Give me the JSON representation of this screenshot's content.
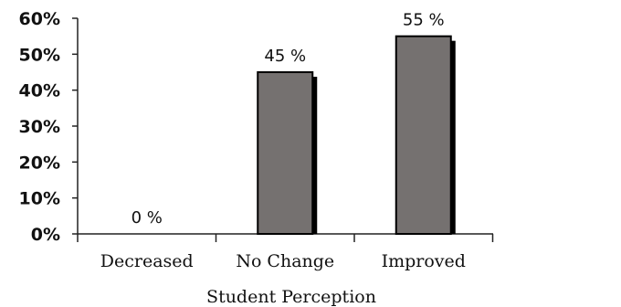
{
  "chart_data": {
    "type": "bar",
    "categories": [
      "Decreased",
      "No Change",
      "Improved"
    ],
    "values": [
      0,
      45,
      55
    ],
    "data_labels": [
      "0 %",
      "45 %",
      "55 %"
    ],
    "xlabel": "Student Perception",
    "ylabel": "",
    "ylim": [
      0,
      60
    ],
    "yticks": [
      "0%",
      "10%",
      "20%",
      "30%",
      "40%",
      "50%",
      "60%"
    ],
    "grid": false,
    "legend": "none",
    "colors": {
      "bar_fill": "#757170",
      "bar_shadow": "#000000",
      "bar_outline": "#000000"
    }
  }
}
